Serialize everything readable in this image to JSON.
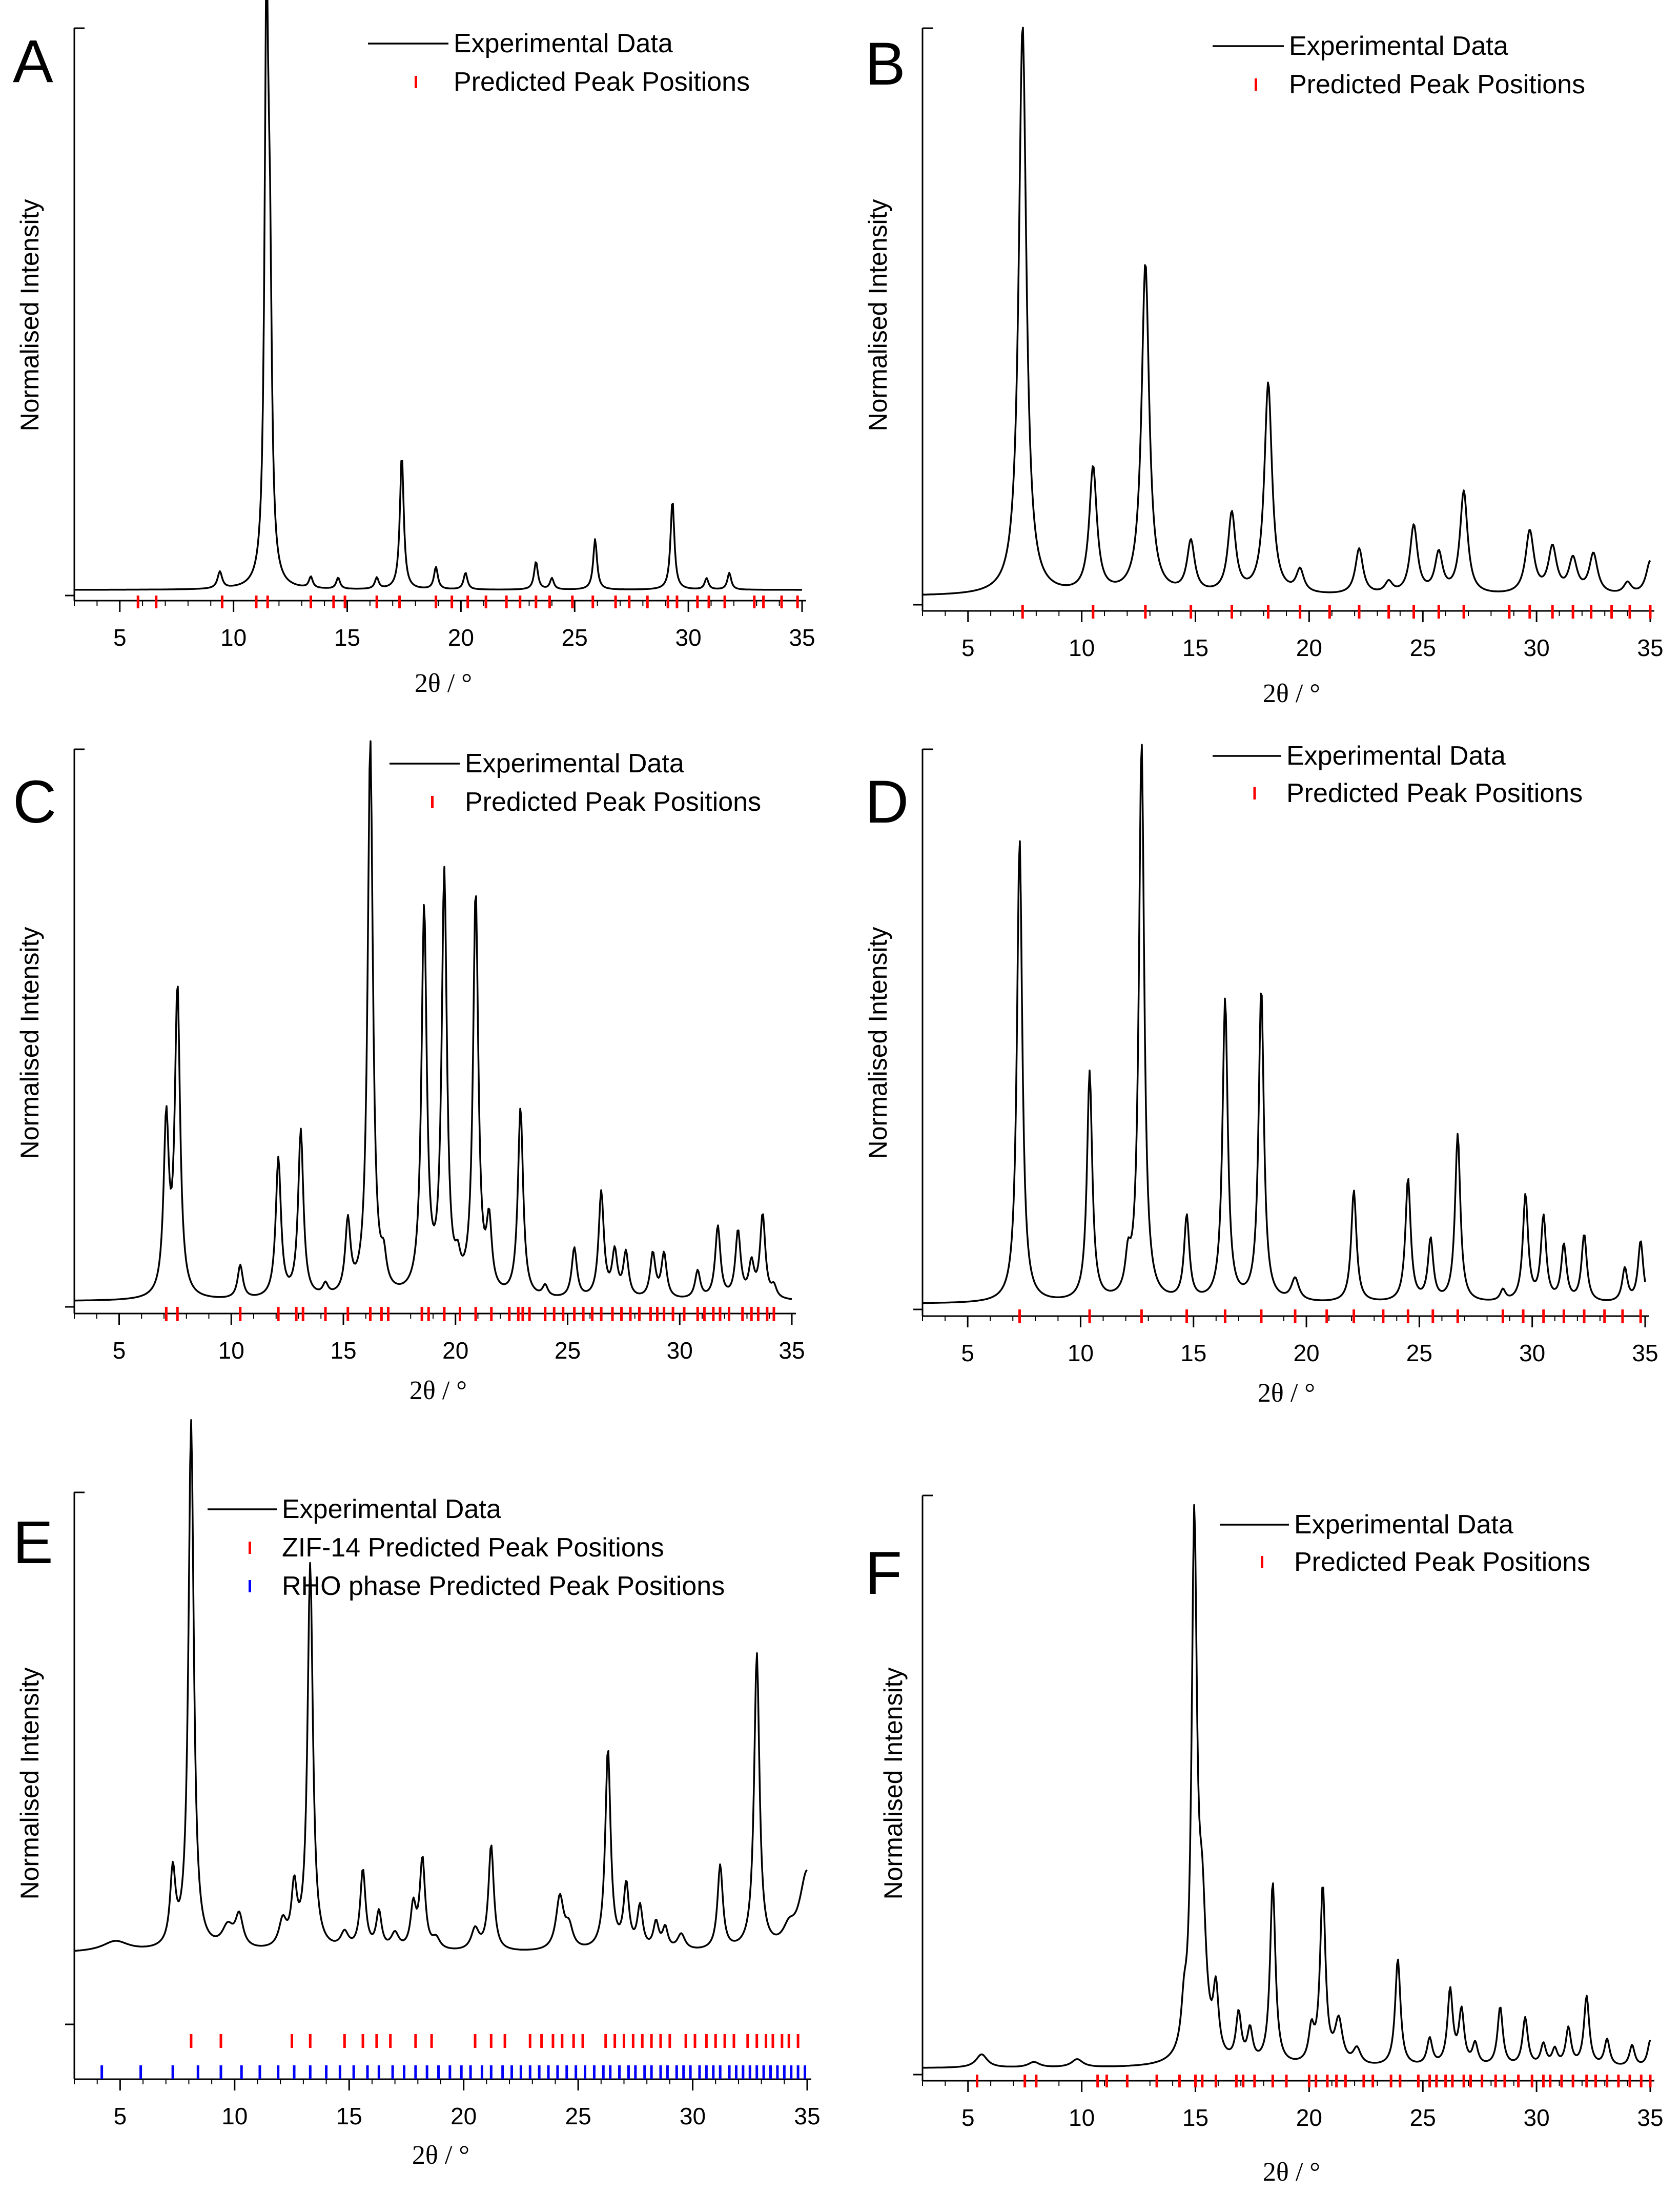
{
  "figure": {
    "axis_xlabel": "2θ / °",
    "axis_ylabel": "Normalised Intensity",
    "colors": {
      "line": "#000000",
      "ticks_red": "#ff0000",
      "ticks_blue": "#0000ff"
    }
  },
  "chart_data": [
    {
      "panel": "A",
      "type": "line",
      "xlabel": "2θ / °",
      "ylabel": "Normalised Intensity",
      "xlim": [
        3,
        35
      ],
      "ylim": [
        0,
        1
      ],
      "xticks": [
        "5",
        "10",
        "15",
        "20",
        "25",
        "30",
        "35"
      ],
      "legend": [
        "Experimental Data",
        "Predicted Peak Positions"
      ],
      "baseline": 0.01,
      "peaks": [
        [
          9.4,
          0.03,
          0.12
        ],
        [
          11.45,
          1.0,
          0.1
        ],
        [
          11.6,
          0.45,
          0.1
        ],
        [
          13.4,
          0.02,
          0.1
        ],
        [
          14.6,
          0.02,
          0.1
        ],
        [
          16.3,
          0.02,
          0.1
        ],
        [
          17.4,
          0.24,
          0.1
        ],
        [
          18.9,
          0.04,
          0.1
        ],
        [
          20.2,
          0.03,
          0.1
        ],
        [
          23.3,
          0.05,
          0.1
        ],
        [
          24.0,
          0.02,
          0.1
        ],
        [
          25.9,
          0.09,
          0.1
        ],
        [
          29.3,
          0.16,
          0.1
        ],
        [
          30.8,
          0.02,
          0.1
        ],
        [
          31.8,
          0.03,
          0.1
        ]
      ],
      "tick_rows": [
        {
          "name": "Predicted Peak Positions",
          "color": "red",
          "positions": [
            5.8,
            6.6,
            9.5,
            11.0,
            11.5,
            13.4,
            14.4,
            14.9,
            16.3,
            17.3,
            18.9,
            19.6,
            20.3,
            21.1,
            22.0,
            22.6,
            23.3,
            23.9,
            24.9,
            25.8,
            26.8,
            27.4,
            28.2,
            29.1,
            29.5,
            30.4,
            30.9,
            31.6,
            32.9,
            33.3,
            34.1,
            34.8
          ]
        }
      ]
    },
    {
      "panel": "B",
      "type": "line",
      "xlabel": "2θ / °",
      "ylabel": "Normalised Intensity",
      "xlim": [
        3,
        35
      ],
      "ylim": [
        0,
        1
      ],
      "xticks": [
        "5",
        "10",
        "15",
        "20",
        "25",
        "30",
        "35"
      ],
      "legend": [
        "Experimental Data",
        "Predicted Peak Positions"
      ],
      "baseline": 0.015,
      "peaks": [
        [
          7.4,
          1.0,
          0.2
        ],
        [
          10.5,
          0.22,
          0.2
        ],
        [
          12.8,
          0.58,
          0.2
        ],
        [
          14.8,
          0.09,
          0.2
        ],
        [
          16.6,
          0.14,
          0.2
        ],
        [
          18.2,
          0.37,
          0.2
        ],
        [
          19.6,
          0.04,
          0.2
        ],
        [
          22.2,
          0.08,
          0.2
        ],
        [
          23.5,
          0.02,
          0.2
        ],
        [
          24.6,
          0.12,
          0.2
        ],
        [
          25.7,
          0.07,
          0.2
        ],
        [
          26.8,
          0.18,
          0.2
        ],
        [
          29.7,
          0.11,
          0.22
        ],
        [
          30.7,
          0.08,
          0.22
        ],
        [
          31.6,
          0.06,
          0.22
        ],
        [
          32.5,
          0.07,
          0.22
        ],
        [
          34.0,
          0.02,
          0.2
        ],
        [
          35.0,
          0.06,
          0.22
        ]
      ],
      "tick_rows": [
        {
          "name": "Predicted Peak Positions",
          "color": "red",
          "positions": [
            7.4,
            10.5,
            12.8,
            14.8,
            16.6,
            18.2,
            19.6,
            20.9,
            22.2,
            23.5,
            24.6,
            25.7,
            26.8,
            28.8,
            29.7,
            30.7,
            31.6,
            32.4,
            33.3,
            34.1,
            35.0
          ]
        }
      ]
    },
    {
      "panel": "C",
      "type": "line",
      "xlabel": "2θ / °",
      "ylabel": "Normalised Intensity",
      "xlim": [
        3,
        35
      ],
      "ylim": [
        0,
        1
      ],
      "xticks": [
        "5",
        "10",
        "15",
        "20",
        "25",
        "30",
        "35"
      ],
      "legend": [
        "Experimental Data",
        "Predicted Peak Positions"
      ],
      "baseline": 0.01,
      "peaks": [
        [
          7.1,
          0.31,
          0.14
        ],
        [
          7.6,
          0.55,
          0.14
        ],
        [
          10.4,
          0.06,
          0.14
        ],
        [
          12.1,
          0.25,
          0.14
        ],
        [
          13.1,
          0.3,
          0.14
        ],
        [
          14.2,
          0.02,
          0.14
        ],
        [
          15.2,
          0.13,
          0.14
        ],
        [
          16.2,
          1.0,
          0.14
        ],
        [
          16.8,
          0.05,
          0.14
        ],
        [
          18.6,
          0.69,
          0.14
        ],
        [
          19.5,
          0.75,
          0.14
        ],
        [
          20.1,
          0.04,
          0.14
        ],
        [
          20.9,
          0.72,
          0.14
        ],
        [
          21.5,
          0.12,
          0.14
        ],
        [
          22.9,
          0.34,
          0.14
        ],
        [
          24.0,
          0.02,
          0.14
        ],
        [
          25.3,
          0.09,
          0.14
        ],
        [
          26.5,
          0.19,
          0.14
        ],
        [
          27.1,
          0.08,
          0.14
        ],
        [
          27.6,
          0.08,
          0.14
        ],
        [
          28.8,
          0.08,
          0.14
        ],
        [
          29.3,
          0.08,
          0.14
        ],
        [
          30.8,
          0.05,
          0.14
        ],
        [
          31.7,
          0.13,
          0.14
        ],
        [
          32.6,
          0.12,
          0.14
        ],
        [
          33.2,
          0.06,
          0.14
        ],
        [
          33.7,
          0.15,
          0.14
        ],
        [
          34.2,
          0.02,
          0.14
        ]
      ],
      "tick_rows": [
        {
          "name": "Predicted Peak Positions",
          "color": "red",
          "positions": [
            7.1,
            7.6,
            10.4,
            12.1,
            12.9,
            13.2,
            14.2,
            15.2,
            16.2,
            16.7,
            17.0,
            18.5,
            18.8,
            19.5,
            20.2,
            20.9,
            21.6,
            22.4,
            22.8,
            23.0,
            23.3,
            24.0,
            24.4,
            24.8,
            25.3,
            25.7,
            26.1,
            26.5,
            27.0,
            27.4,
            27.8,
            28.2,
            28.7,
            29.0,
            29.3,
            29.7,
            30.2,
            30.8,
            31.1,
            31.5,
            31.8,
            32.2,
            32.8,
            33.2,
            33.5,
            33.9,
            34.2
          ]
        }
      ]
    },
    {
      "panel": "D",
      "type": "line",
      "xlabel": "2θ / °",
      "ylabel": "Normalised Intensity",
      "xlim": [
        3,
        35
      ],
      "ylim": [
        0,
        1
      ],
      "xticks": [
        "5",
        "10",
        "15",
        "20",
        "25",
        "30",
        "35"
      ],
      "legend": [
        "Experimental Data",
        "Predicted Peak Positions"
      ],
      "baseline": 0.01,
      "peaks": [
        [
          7.3,
          0.83,
          0.14
        ],
        [
          10.4,
          0.41,
          0.14
        ],
        [
          12.1,
          0.06,
          0.14
        ],
        [
          12.7,
          1.0,
          0.14
        ],
        [
          14.7,
          0.15,
          0.14
        ],
        [
          16.4,
          0.54,
          0.14
        ],
        [
          18.0,
          0.56,
          0.14
        ],
        [
          19.5,
          0.04,
          0.2
        ],
        [
          22.1,
          0.2,
          0.14
        ],
        [
          24.5,
          0.22,
          0.14
        ],
        [
          25.5,
          0.11,
          0.14
        ],
        [
          26.7,
          0.3,
          0.14
        ],
        [
          28.7,
          0.02,
          0.14
        ],
        [
          29.7,
          0.19,
          0.14
        ],
        [
          30.5,
          0.15,
          0.14
        ],
        [
          31.4,
          0.1,
          0.14
        ],
        [
          32.3,
          0.12,
          0.14
        ],
        [
          34.1,
          0.06,
          0.14
        ],
        [
          34.8,
          0.11,
          0.14
        ]
      ],
      "tick_rows": [
        {
          "name": "Predicted Peak Positions",
          "color": "red",
          "positions": [
            7.3,
            10.4,
            12.7,
            14.7,
            16.4,
            18.0,
            19.5,
            20.9,
            22.1,
            23.4,
            24.5,
            25.6,
            26.7,
            28.7,
            29.6,
            30.5,
            31.4,
            32.3,
            33.2,
            34.0,
            34.8
          ]
        }
      ]
    },
    {
      "panel": "E",
      "type": "line",
      "xlabel": "2θ / °",
      "ylabel": "Normalised Intensity",
      "xlim": [
        3,
        35
      ],
      "ylim": [
        0,
        1
      ],
      "xticks": [
        "5",
        "10",
        "15",
        "20",
        "25",
        "30",
        "35"
      ],
      "legend": [
        "Experimental Data",
        "ZIF-14 Predicted Peak Positions",
        "RHO phase Predicted Peak Positions"
      ],
      "baseline": 0.135,
      "peaks": [
        [
          4.8,
          0.02,
          0.7
        ],
        [
          7.3,
          0.14,
          0.14
        ],
        [
          8.1,
          1.0,
          0.14
        ],
        [
          9.7,
          0.04,
          0.3
        ],
        [
          10.2,
          0.06,
          0.2
        ],
        [
          12.1,
          0.05,
          0.2
        ],
        [
          12.6,
          0.11,
          0.14
        ],
        [
          13.3,
          0.73,
          0.14
        ],
        [
          14.8,
          0.03,
          0.2
        ],
        [
          15.6,
          0.15,
          0.14
        ],
        [
          16.3,
          0.07,
          0.14
        ],
        [
          17.0,
          0.03,
          0.2
        ],
        [
          17.8,
          0.08,
          0.14
        ],
        [
          18.2,
          0.17,
          0.14
        ],
        [
          18.8,
          0.02,
          0.2
        ],
        [
          20.5,
          0.04,
          0.2
        ],
        [
          21.2,
          0.2,
          0.14
        ],
        [
          24.2,
          0.1,
          0.2
        ],
        [
          24.6,
          0.04,
          0.2
        ],
        [
          26.3,
          0.38,
          0.14
        ],
        [
          27.1,
          0.12,
          0.14
        ],
        [
          27.7,
          0.08,
          0.14
        ],
        [
          28.4,
          0.05,
          0.14
        ],
        [
          28.8,
          0.04,
          0.14
        ],
        [
          29.5,
          0.03,
          0.2
        ],
        [
          31.2,
          0.16,
          0.14
        ],
        [
          32.8,
          0.56,
          0.14
        ],
        [
          34.2,
          0.03,
          0.3
        ],
        [
          35.0,
          0.15,
          0.4
        ]
      ],
      "tick_rows": [
        {
          "name": "ZIF-14 Predicted Peak Positions",
          "color": "red",
          "positions": [
            8.1,
            9.4,
            12.5,
            13.3,
            14.8,
            15.6,
            16.2,
            16.8,
            17.9,
            18.6,
            20.5,
            21.2,
            21.8,
            22.9,
            23.4,
            23.9,
            24.3,
            24.8,
            25.2,
            26.2,
            26.6,
            27.0,
            27.4,
            27.8,
            28.2,
            28.6,
            29.0,
            29.7,
            30.1,
            30.6,
            31.0,
            31.4,
            31.8,
            32.4,
            32.8,
            33.2,
            33.5,
            33.9,
            34.2,
            34.6
          ]
        },
        {
          "name": "RHO phase Predicted Peak Positions",
          "color": "blue",
          "positions": [
            4.2,
            5.9,
            7.3,
            8.4,
            9.4,
            10.3,
            11.1,
            11.9,
            12.6,
            13.3,
            14.0,
            14.6,
            15.2,
            15.8,
            16.3,
            16.9,
            17.4,
            17.9,
            18.4,
            18.9,
            19.4,
            19.9,
            20.3,
            20.8,
            21.2,
            21.7,
            22.1,
            22.5,
            22.9,
            23.3,
            23.7,
            24.1,
            24.5,
            24.9,
            25.3,
            25.7,
            26.1,
            26.4,
            26.8,
            27.2,
            27.5,
            27.9,
            28.2,
            28.6,
            28.9,
            29.3,
            29.6,
            29.9,
            30.3,
            30.6,
            30.9,
            31.2,
            31.6,
            31.9,
            32.2,
            32.5,
            32.8,
            33.1,
            33.4,
            33.7,
            34.0,
            34.3,
            34.6,
            34.9
          ]
        }
      ]
    },
    {
      "panel": "F",
      "type": "line",
      "xlabel": "2θ / °",
      "ylabel": "Normalised Intensity",
      "xlim": [
        3,
        35
      ],
      "ylim": [
        0,
        1
      ],
      "xticks": [
        "5",
        "10",
        "15",
        "20",
        "25",
        "30",
        "35"
      ],
      "legend": [
        "Experimental Data",
        "Predicted Peak Positions"
      ],
      "baseline": 0.012,
      "peaks": [
        [
          5.6,
          0.025,
          0.3
        ],
        [
          7.9,
          0.01,
          0.3
        ],
        [
          9.8,
          0.015,
          0.3
        ],
        [
          14.5,
          0.07,
          0.14
        ],
        [
          14.95,
          0.98,
          0.14
        ],
        [
          15.3,
          0.25,
          0.2
        ],
        [
          15.9,
          0.12,
          0.14
        ],
        [
          16.9,
          0.09,
          0.14
        ],
        [
          17.4,
          0.06,
          0.14
        ],
        [
          18.4,
          0.34,
          0.14
        ],
        [
          20.1,
          0.06,
          0.14
        ],
        [
          20.6,
          0.33,
          0.14
        ],
        [
          21.3,
          0.08,
          0.2
        ],
        [
          22.1,
          0.03,
          0.2
        ],
        [
          23.9,
          0.2,
          0.14
        ],
        [
          25.3,
          0.05,
          0.14
        ],
        [
          26.2,
          0.14,
          0.14
        ],
        [
          26.7,
          0.1,
          0.14
        ],
        [
          27.3,
          0.04,
          0.14
        ],
        [
          28.4,
          0.11,
          0.14
        ],
        [
          29.5,
          0.09,
          0.14
        ],
        [
          30.3,
          0.04,
          0.14
        ],
        [
          30.8,
          0.03,
          0.14
        ],
        [
          31.4,
          0.07,
          0.14
        ],
        [
          32.2,
          0.13,
          0.14
        ],
        [
          33.1,
          0.05,
          0.14
        ],
        [
          34.2,
          0.04,
          0.14
        ],
        [
          35.0,
          0.05,
          0.14
        ]
      ],
      "tick_rows": [
        {
          "name": "Predicted Peak Positions",
          "color": "red",
          "positions": [
            5.4,
            7.5,
            8.0,
            10.7,
            11.1,
            12.0,
            13.3,
            14.3,
            15.0,
            15.3,
            15.9,
            16.8,
            17.1,
            17.6,
            18.4,
            19.0,
            20.0,
            20.3,
            20.8,
            21.2,
            21.6,
            22.4,
            22.8,
            23.6,
            24.0,
            24.8,
            25.3,
            25.6,
            26.0,
            26.3,
            26.8,
            27.1,
            27.6,
            28.2,
            28.6,
            29.2,
            29.8,
            30.3,
            30.6,
            31.1,
            31.6,
            32.2,
            32.6,
            33.1,
            33.6,
            34.1,
            34.6,
            35.0
          ]
        }
      ]
    }
  ]
}
